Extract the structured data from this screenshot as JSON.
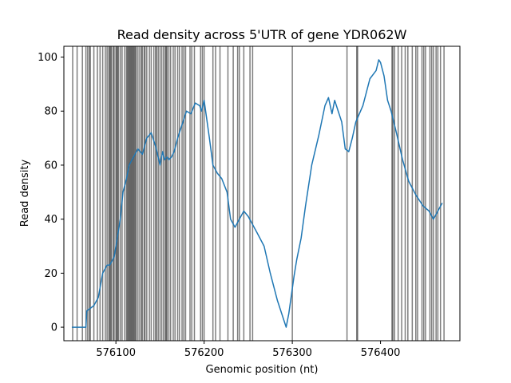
{
  "chart_data": {
    "type": "line",
    "title": "Read density across 5'UTR of gene YDR062W",
    "xlabel": "Genomic position (nt)",
    "ylabel": "Read density",
    "xlim": [
      576041,
      576490
    ],
    "ylim": [
      -5,
      104
    ],
    "xticks": [
      576100,
      576200,
      576300,
      576400
    ],
    "yticks": [
      0,
      20,
      40,
      60,
      80,
      100
    ],
    "grid": false,
    "legend": "none",
    "line_color": "#1f77b4",
    "vline_color": "#000000",
    "vline_opacity": 0.5,
    "series": [
      {
        "x": [
          576050,
          576066,
          576067,
          576075,
          576080,
          576085,
          576090,
          576093,
          576098,
          576105,
          576108,
          576112,
          576115,
          576120,
          576125,
          576130,
          576135,
          576140,
          576145,
          576150,
          576153,
          576155,
          576158,
          576160,
          576163,
          576166,
          576170,
          576175,
          576180,
          576185,
          576190,
          576195,
          576197,
          576200,
          576203,
          576206,
          576210,
          576215,
          576220,
          576226,
          576230,
          576235,
          576240,
          576245,
          576250,
          576255,
          576260,
          576268,
          576275,
          576283,
          576290,
          576293,
          576296,
          576299,
          576302,
          576305,
          576310,
          576315,
          576322,
          576330,
          576337,
          576341,
          576345,
          576348,
          576352,
          576356,
          576360,
          576364,
          576368,
          576372,
          576380,
          576388,
          576395,
          576398,
          576400,
          576404,
          576408,
          576412,
          576418,
          576425,
          576432,
          576440,
          576448,
          576455,
          576460,
          576465,
          576470
        ],
        "y": [
          0,
          0,
          6,
          8,
          11,
          20,
          23,
          23,
          26,
          40,
          50,
          55,
          60,
          63,
          66,
          64,
          70,
          72,
          67,
          60,
          65,
          62,
          63,
          62,
          63,
          65,
          70,
          75,
          80,
          79,
          83,
          82,
          80,
          84,
          77,
          70,
          60,
          57,
          55,
          50,
          40,
          37,
          40,
          43,
          41,
          38,
          35,
          30,
          20,
          10,
          3,
          0,
          5,
          12,
          19,
          25,
          33,
          45,
          60,
          71,
          82,
          85,
          79,
          84,
          80,
          76,
          66,
          65,
          70,
          76,
          82,
          92,
          95,
          99,
          98,
          93,
          84,
          80,
          72,
          62,
          54,
          49,
          45,
          43,
          40,
          43,
          46
        ]
      }
    ],
    "vlines": [
      576051,
      576056,
      576062,
      576066,
      576068,
      576070,
      576071,
      576075,
      576079,
      576082,
      576085,
      576088,
      576090,
      576092,
      576093,
      576094,
      576095,
      576097,
      576098,
      576100,
      576101,
      576102,
      576103,
      576105,
      576107,
      576110,
      576112,
      576113,
      576114,
      576115,
      576116,
      576117,
      576118,
      576119,
      576120,
      576121,
      576122,
      576123,
      576125,
      576127,
      576129,
      576130,
      576132,
      576133,
      576135,
      576138,
      576140,
      576143,
      576145,
      576146,
      576148,
      576150,
      576152,
      576154,
      576156,
      576157,
      576158,
      576160,
      576162,
      576165,
      576167,
      576170,
      576172,
      576175,
      576177,
      576179,
      576184,
      576186,
      576189,
      576196,
      576198,
      576200,
      576210,
      576213,
      576218,
      576227,
      576233,
      576238,
      576240,
      576245,
      576252,
      576255,
      576300,
      576362,
      576373,
      576374,
      576413,
      576414,
      576416,
      576420,
      576424,
      576428,
      576431,
      576436,
      576440,
      576442,
      576447,
      576449,
      576451,
      576456,
      576458,
      576460,
      576463,
      576465,
      576468,
      576472
    ]
  }
}
